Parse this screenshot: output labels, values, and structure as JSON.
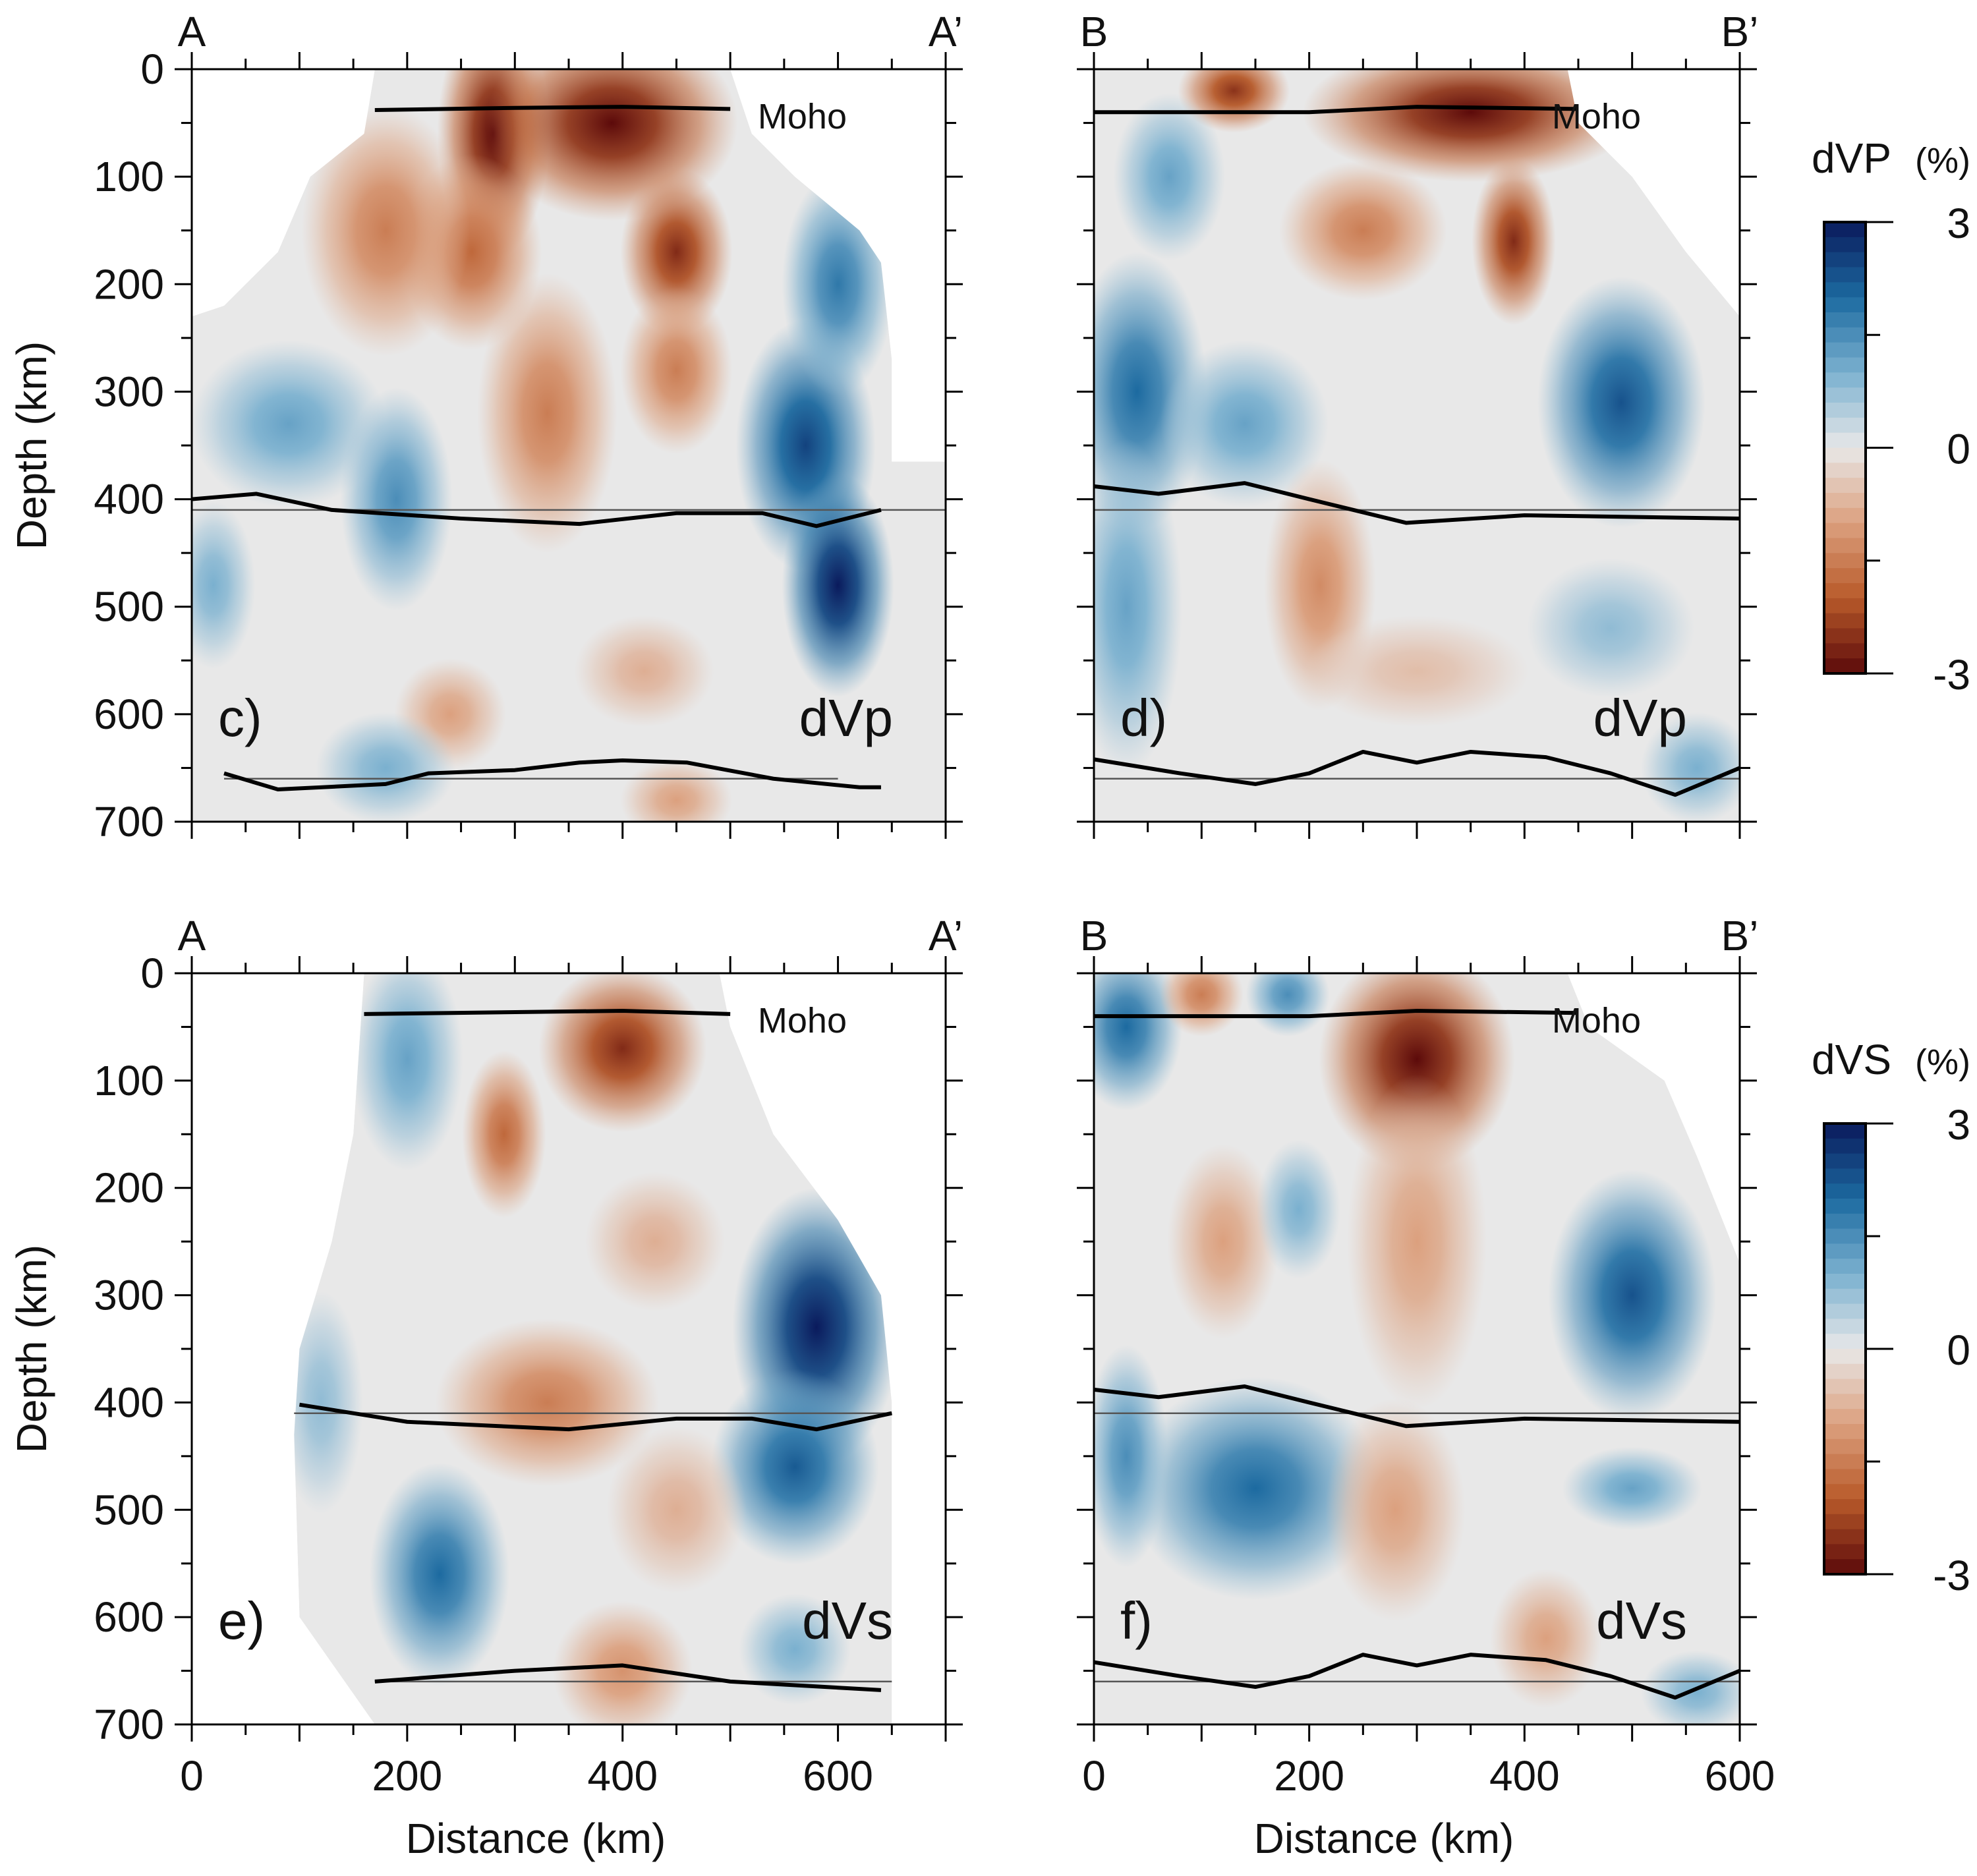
{
  "colormap": {
    "3": "#0a1a5c",
    "2": "#1c6aa0",
    "1": "#7ab0cf",
    "0": "#e8e8e8",
    "-1": "#dca07e",
    "-2": "#b85a2a",
    "-3": "#5c0a0a"
  },
  "chart_data": [
    {
      "type": "heatmap",
      "panel_label": "c)",
      "field_label": "dVp",
      "left_label": "A",
      "right_label": "A’",
      "moho_label": "Moho",
      "xlim": [
        0,
        700
      ],
      "ylim": [
        0,
        700
      ],
      "xticks": [
        0,
        200,
        400,
        600
      ],
      "yticks": [
        0,
        100,
        200,
        300,
        400,
        500,
        600,
        700
      ],
      "show_xlabels": false,
      "show_ylabels": true,
      "ylabel": "Depth (km)",
      "xlabel": "",
      "coverage": [
        [
          170,
          0
        ],
        [
          500,
          0
        ],
        [
          520,
          60
        ],
        [
          560,
          100
        ],
        [
          620,
          150
        ],
        [
          640,
          180
        ],
        [
          650,
          270
        ],
        [
          650,
          365
        ],
        [
          700,
          365
        ],
        [
          700,
          700
        ],
        [
          0,
          700
        ],
        [
          0,
          230
        ],
        [
          30,
          220
        ],
        [
          80,
          170
        ],
        [
          110,
          100
        ],
        [
          160,
          60
        ]
      ],
      "anomalies": [
        [
          280,
          60,
          -3,
          40,
          90
        ],
        [
          390,
          50,
          -3,
          90,
          70
        ],
        [
          450,
          170,
          -2.6,
          40,
          60
        ],
        [
          260,
          170,
          -1.8,
          50,
          70
        ],
        [
          180,
          150,
          -1.5,
          60,
          90
        ],
        [
          330,
          320,
          -1.5,
          50,
          100
        ],
        [
          450,
          280,
          -1.5,
          40,
          60
        ],
        [
          570,
          350,
          2.5,
          50,
          90
        ],
        [
          600,
          480,
          3,
          40,
          80
        ],
        [
          600,
          200,
          1.8,
          40,
          80
        ],
        [
          90,
          330,
          1.2,
          70,
          60
        ],
        [
          190,
          400,
          1.5,
          40,
          80
        ],
        [
          20,
          480,
          1,
          30,
          60
        ],
        [
          240,
          600,
          -1,
          40,
          40
        ],
        [
          420,
          560,
          -0.8,
          50,
          40
        ],
        [
          180,
          650,
          1,
          50,
          40
        ],
        [
          450,
          680,
          -1,
          40,
          30
        ]
      ],
      "moho": [
        [
          170,
          38
        ],
        [
          300,
          36
        ],
        [
          400,
          35
        ],
        [
          500,
          37
        ]
      ],
      "d410": [
        [
          0,
          400
        ],
        [
          60,
          395
        ],
        [
          130,
          410
        ],
        [
          250,
          418
        ],
        [
          360,
          423
        ],
        [
          450,
          413
        ],
        [
          530,
          413
        ],
        [
          580,
          425
        ],
        [
          640,
          410
        ]
      ],
      "d660": [
        [
          30,
          655
        ],
        [
          80,
          670
        ],
        [
          180,
          665
        ],
        [
          220,
          655
        ],
        [
          300,
          652
        ],
        [
          360,
          645
        ],
        [
          400,
          643
        ],
        [
          460,
          645
        ],
        [
          540,
          660
        ],
        [
          620,
          668
        ],
        [
          640,
          668
        ]
      ],
      "ref410": [
        0,
        700
      ],
      "ref660": [
        30,
        600
      ]
    },
    {
      "type": "heatmap",
      "panel_label": "d)",
      "field_label": "dVp",
      "left_label": "B",
      "right_label": "B’",
      "moho_label": "Moho",
      "xlim": [
        0,
        600
      ],
      "ylim": [
        0,
        700
      ],
      "xticks": [
        0,
        200,
        400,
        600
      ],
      "yticks": [
        0,
        100,
        200,
        300,
        400,
        500,
        600,
        700
      ],
      "show_xlabels": false,
      "show_ylabels": false,
      "ylabel": "",
      "xlabel": "",
      "coverage": [
        [
          0,
          0
        ],
        [
          440,
          0
        ],
        [
          450,
          50
        ],
        [
          500,
          100
        ],
        [
          550,
          170
        ],
        [
          600,
          230
        ],
        [
          600,
          700
        ],
        [
          0,
          700
        ]
      ],
      "anomalies": [
        [
          130,
          20,
          -2.5,
          40,
          30
        ],
        [
          350,
          40,
          -3,
          120,
          50
        ],
        [
          390,
          160,
          -2.6,
          30,
          60
        ],
        [
          250,
          150,
          -1.5,
          60,
          50
        ],
        [
          70,
          100,
          1.2,
          40,
          60
        ],
        [
          40,
          300,
          2,
          50,
          100
        ],
        [
          140,
          330,
          1.2,
          60,
          60
        ],
        [
          30,
          500,
          1.2,
          40,
          120
        ],
        [
          490,
          310,
          2.3,
          60,
          90
        ],
        [
          210,
          480,
          -1.3,
          40,
          90
        ],
        [
          300,
          560,
          -0.6,
          80,
          40
        ],
        [
          480,
          520,
          0.8,
          60,
          50
        ],
        [
          560,
          650,
          1,
          40,
          40
        ]
      ],
      "moho": [
        [
          0,
          40
        ],
        [
          200,
          40
        ],
        [
          300,
          35
        ],
        [
          450,
          37
        ]
      ],
      "d410": [
        [
          0,
          388
        ],
        [
          60,
          395
        ],
        [
          140,
          385
        ],
        [
          200,
          400
        ],
        [
          290,
          422
        ],
        [
          400,
          415
        ],
        [
          600,
          418
        ]
      ],
      "d660": [
        [
          0,
          642
        ],
        [
          80,
          655
        ],
        [
          150,
          665
        ],
        [
          200,
          655
        ],
        [
          250,
          635
        ],
        [
          300,
          645
        ],
        [
          350,
          635
        ],
        [
          420,
          640
        ],
        [
          480,
          655
        ],
        [
          540,
          675
        ],
        [
          600,
          650
        ]
      ],
      "ref410": [
        0,
        600
      ],
      "ref660": [
        0,
        600
      ]
    },
    {
      "type": "heatmap",
      "panel_label": "e)",
      "field_label": "dVs",
      "left_label": "A",
      "right_label": "A’",
      "moho_label": "Moho",
      "xlim": [
        0,
        700
      ],
      "ylim": [
        0,
        700
      ],
      "xticks": [
        0,
        200,
        400,
        600
      ],
      "yticks": [
        0,
        100,
        200,
        300,
        400,
        500,
        600,
        700
      ],
      "show_xlabels": true,
      "show_ylabels": true,
      "ylabel": "Depth (km)",
      "xlabel": "Distance (km)",
      "coverage": [
        [
          160,
          0
        ],
        [
          490,
          0
        ],
        [
          500,
          50
        ],
        [
          540,
          150
        ],
        [
          600,
          230
        ],
        [
          640,
          300
        ],
        [
          650,
          400
        ],
        [
          650,
          700
        ],
        [
          170,
          700
        ],
        [
          100,
          600
        ],
        [
          95,
          430
        ],
        [
          100,
          350
        ],
        [
          130,
          250
        ],
        [
          150,
          150
        ]
      ],
      "anomalies": [
        [
          400,
          70,
          -2.6,
          60,
          60
        ],
        [
          290,
          150,
          -1.8,
          30,
          60
        ],
        [
          200,
          80,
          1.2,
          40,
          80
        ],
        [
          580,
          330,
          3,
          60,
          100
        ],
        [
          560,
          460,
          2.2,
          60,
          70
        ],
        [
          230,
          560,
          2,
          50,
          80
        ],
        [
          330,
          400,
          -1.5,
          80,
          60
        ],
        [
          430,
          250,
          -0.8,
          50,
          50
        ],
        [
          450,
          500,
          -0.8,
          50,
          60
        ],
        [
          400,
          650,
          -1.2,
          50,
          50
        ],
        [
          560,
          630,
          1,
          40,
          40
        ],
        [
          120,
          400,
          0.8,
          30,
          80
        ]
      ],
      "moho": [
        [
          160,
          38
        ],
        [
          400,
          35
        ],
        [
          500,
          38
        ]
      ],
      "d410": [
        [
          100,
          402
        ],
        [
          200,
          418
        ],
        [
          350,
          425
        ],
        [
          450,
          415
        ],
        [
          520,
          415
        ],
        [
          580,
          425
        ],
        [
          650,
          410
        ]
      ],
      "d660": [
        [
          170,
          660
        ],
        [
          300,
          650
        ],
        [
          400,
          645
        ],
        [
          500,
          660
        ],
        [
          640,
          668
        ]
      ],
      "ref410": [
        95,
        650
      ],
      "ref660": [
        170,
        650
      ]
    },
    {
      "type": "heatmap",
      "panel_label": "f)",
      "field_label": "dVs",
      "left_label": "B",
      "right_label": "B’",
      "moho_label": "Moho",
      "xlim": [
        0,
        600
      ],
      "ylim": [
        0,
        700
      ],
      "xticks": [
        0,
        200,
        400,
        600
      ],
      "yticks": [
        0,
        100,
        200,
        300,
        400,
        500,
        600,
        700
      ],
      "show_xlabels": true,
      "show_ylabels": false,
      "ylabel": "",
      "xlabel": "Distance (km)",
      "coverage": [
        [
          0,
          0
        ],
        [
          440,
          0
        ],
        [
          460,
          50
        ],
        [
          530,
          100
        ],
        [
          560,
          170
        ],
        [
          600,
          270
        ],
        [
          600,
          700
        ],
        [
          0,
          700
        ]
      ],
      "anomalies": [
        [
          30,
          50,
          2,
          40,
          60
        ],
        [
          180,
          20,
          1.5,
          30,
          30
        ],
        [
          100,
          20,
          -1.5,
          30,
          30
        ],
        [
          300,
          80,
          -3,
          70,
          80
        ],
        [
          300,
          250,
          -1,
          50,
          120
        ],
        [
          120,
          250,
          -1,
          40,
          70
        ],
        [
          190,
          220,
          1,
          30,
          50
        ],
        [
          500,
          300,
          2.3,
          60,
          90
        ],
        [
          150,
          480,
          2,
          90,
          80
        ],
        [
          30,
          450,
          1.5,
          30,
          80
        ],
        [
          280,
          500,
          -1,
          50,
          80
        ],
        [
          500,
          480,
          1.2,
          50,
          30
        ],
        [
          420,
          620,
          -1,
          40,
          50
        ],
        [
          560,
          670,
          1,
          40,
          30
        ]
      ],
      "moho": [
        [
          0,
          40
        ],
        [
          200,
          40
        ],
        [
          300,
          35
        ],
        [
          450,
          37
        ]
      ],
      "d410": [
        [
          0,
          388
        ],
        [
          60,
          395
        ],
        [
          140,
          385
        ],
        [
          200,
          400
        ],
        [
          290,
          422
        ],
        [
          400,
          415
        ],
        [
          600,
          418
        ]
      ],
      "d660": [
        [
          0,
          642
        ],
        [
          80,
          655
        ],
        [
          150,
          665
        ],
        [
          200,
          655
        ],
        [
          250,
          635
        ],
        [
          300,
          645
        ],
        [
          350,
          635
        ],
        [
          420,
          640
        ],
        [
          480,
          655
        ],
        [
          540,
          675
        ],
        [
          600,
          650
        ]
      ],
      "ref410": [
        0,
        600
      ],
      "ref660": [
        0,
        600
      ]
    }
  ],
  "colorbars": [
    {
      "title": "dVP",
      "unit": "(%)",
      "ticks": [
        3,
        0,
        -3
      ],
      "range": [
        -3,
        3
      ]
    },
    {
      "title": "dVS",
      "unit": "(%)",
      "ticks": [
        3,
        0,
        -3
      ],
      "range": [
        -3,
        3
      ]
    }
  ]
}
